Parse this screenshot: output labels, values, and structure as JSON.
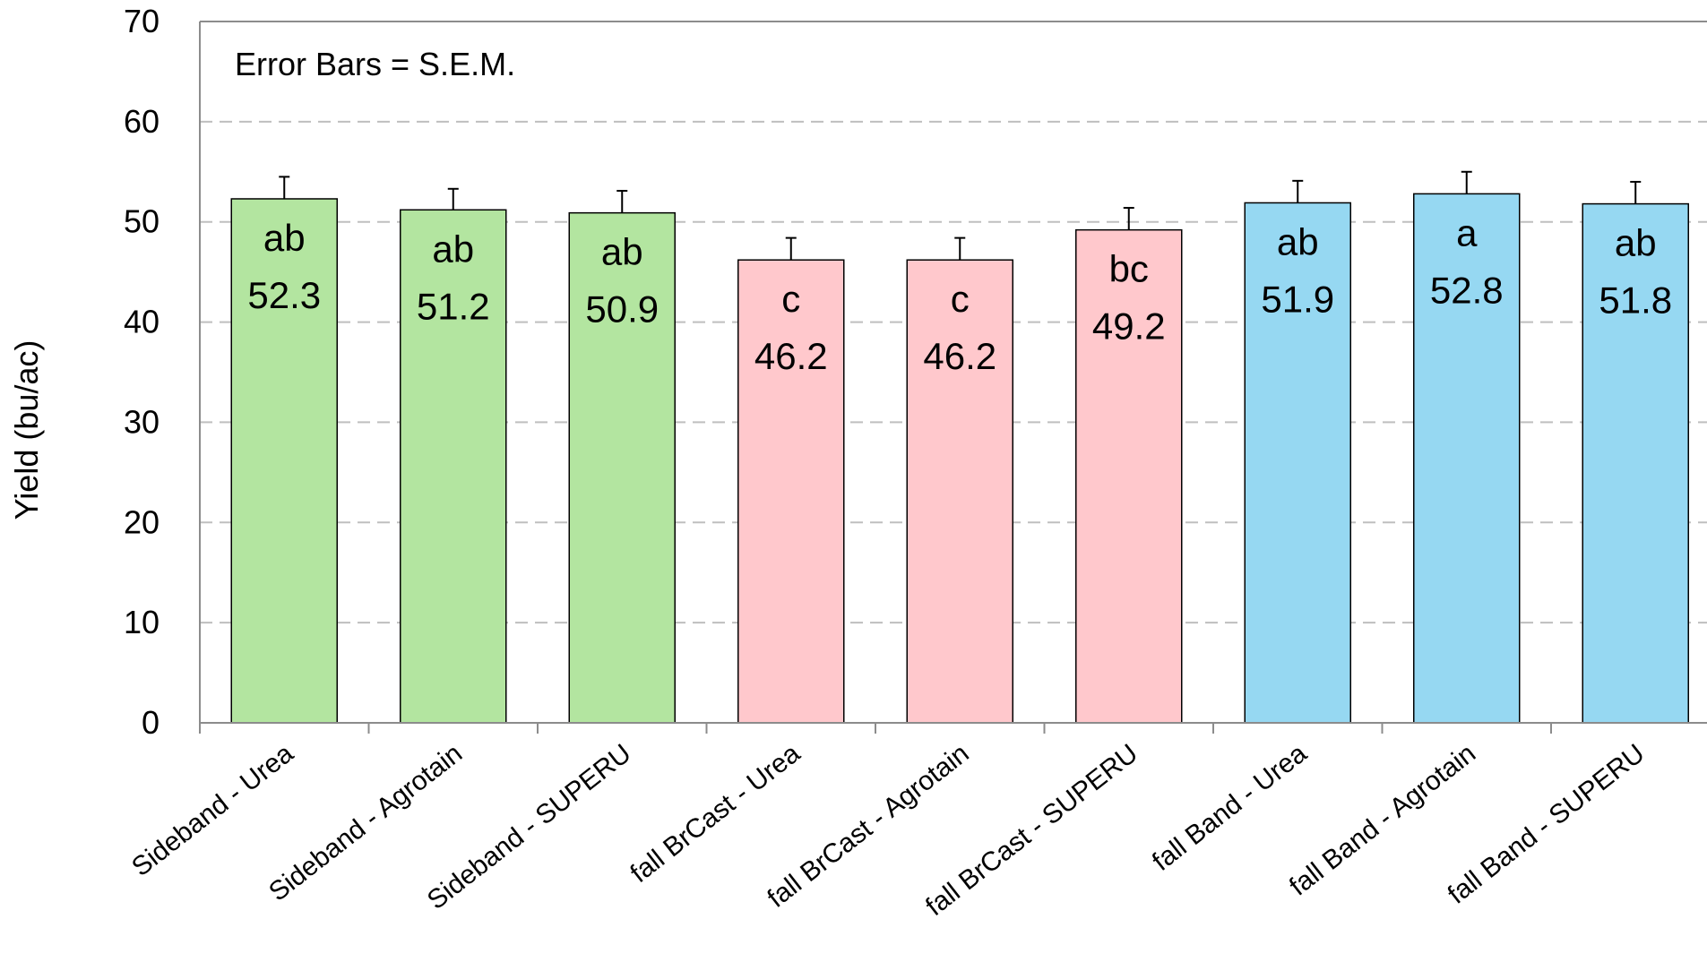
{
  "chart_data": {
    "type": "bar",
    "annotation": "Error Bars = S.E.M.",
    "ylabel": "Yield (bu/ac)",
    "xlabel": "",
    "ylim": [
      0,
      70
    ],
    "yticks": [
      0,
      10,
      20,
      30,
      40,
      50,
      60,
      70
    ],
    "grid": true,
    "categories": [
      "Sideband - Urea",
      "Sideband - Agrotain",
      "Sideband - SUPERU",
      "fall BrCast - Urea",
      "fall BrCast - Agrotain",
      "fall BrCast - SUPERU",
      "fall Band - Urea",
      "fall Band - Agrotain",
      "fall Band - SUPERU"
    ],
    "values": [
      52.3,
      51.2,
      50.9,
      46.2,
      46.2,
      49.2,
      51.9,
      52.8,
      51.8
    ],
    "value_labels": [
      "52.3",
      "51.2",
      "50.9",
      "46.2",
      "46.2",
      "49.2",
      "51.9",
      "52.8",
      "51.8"
    ],
    "errors": [
      2.2,
      2.1,
      2.2,
      2.2,
      2.2,
      2.2,
      2.2,
      2.2,
      2.2
    ],
    "letters": [
      "ab",
      "ab",
      "ab",
      "c",
      "c",
      "bc",
      "ab",
      "a",
      "ab"
    ],
    "colors": [
      "#b3e5a0",
      "#b3e5a0",
      "#b3e5a0",
      "#ffc8cc",
      "#ffc8cc",
      "#ffc8cc",
      "#96d8f2",
      "#96d8f2",
      "#96d8f2"
    ]
  }
}
